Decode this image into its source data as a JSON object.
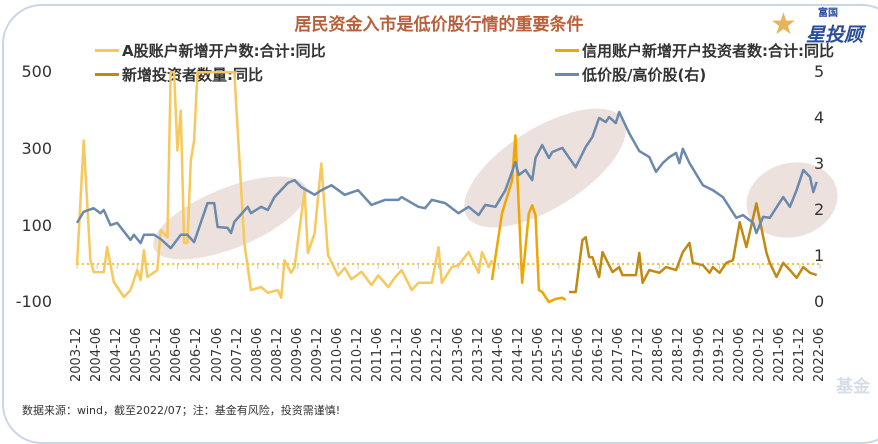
{
  "chart_data": {
    "type": "line",
    "title": "居民资金入市是低价股行情的重要条件",
    "x_unit": "months since 2003-12",
    "x_tick_labels": [
      "2003-12",
      "2004-06",
      "2004-12",
      "2005-06",
      "2005-12",
      "2006-06",
      "2006-12",
      "2007-06",
      "2007-12",
      "2008-06",
      "2008-12",
      "2009-06",
      "2009-12",
      "2010-06",
      "2010-12",
      "2011-06",
      "2011-12",
      "2012-06",
      "2012-12",
      "2013-06",
      "2013-12",
      "2014-06",
      "2014-12",
      "2015-06",
      "2015-12",
      "2016-06",
      "2016-12",
      "2017-06",
      "2017-12",
      "2018-06",
      "2018-12",
      "2019-06",
      "2019-12",
      "2020-06",
      "2020-12",
      "2021-06",
      "2021-12",
      "2022-06"
    ],
    "y_left": {
      "ticks": [
        500,
        300,
        100,
        -100
      ],
      "range": [
        -100,
        500
      ]
    },
    "y_right": {
      "ticks": [
        5,
        4,
        3,
        2,
        1,
        0
      ],
      "range": [
        0,
        5
      ]
    },
    "series": [
      {
        "name": "A股账户新增开户数:合计:同比",
        "axis": "left",
        "color": "#f7c85c",
        "points": [
          [
            0,
            -3
          ],
          [
            2,
            322
          ],
          [
            4,
            10
          ],
          [
            5,
            -21
          ],
          [
            8,
            -21
          ],
          [
            9,
            44
          ],
          [
            11,
            -47
          ],
          [
            14,
            -86
          ],
          [
            16,
            -68
          ],
          [
            18,
            -16
          ],
          [
            19,
            -42
          ],
          [
            20,
            36
          ],
          [
            21,
            -34
          ],
          [
            24,
            -16
          ],
          [
            25,
            88
          ],
          [
            27,
            70
          ],
          [
            28,
            500
          ],
          [
            29,
            500
          ],
          [
            30,
            296
          ],
          [
            31,
            400
          ],
          [
            32,
            55
          ],
          [
            33,
            55
          ],
          [
            34,
            270
          ],
          [
            35,
            322
          ],
          [
            36,
            500
          ],
          [
            47,
            500
          ],
          [
            50,
            55
          ],
          [
            52,
            -68
          ],
          [
            55,
            -60
          ],
          [
            57,
            -75
          ],
          [
            60,
            -68
          ],
          [
            61,
            -88
          ],
          [
            62,
            10
          ],
          [
            64,
            -23
          ],
          [
            65,
            -8
          ],
          [
            68,
            192
          ],
          [
            69,
            29
          ],
          [
            71,
            80
          ],
          [
            73,
            262
          ],
          [
            75,
            23
          ],
          [
            78,
            -30
          ],
          [
            80,
            -10
          ],
          [
            82,
            -40
          ],
          [
            85,
            -20
          ],
          [
            88,
            -55
          ],
          [
            90,
            -30
          ],
          [
            93,
            -60
          ],
          [
            95,
            -35
          ],
          [
            97,
            -16
          ],
          [
            100,
            -68
          ],
          [
            102,
            -49
          ],
          [
            106,
            -49
          ],
          [
            108,
            44
          ],
          [
            109,
            -49
          ],
          [
            112,
            -8
          ],
          [
            114,
            -3
          ],
          [
            117,
            31
          ],
          [
            120,
            -23
          ],
          [
            121,
            31
          ],
          [
            123,
            -8
          ],
          [
            124,
            10
          ]
        ]
      },
      {
        "name": "信用账户新增开户投资者数:合计:同比",
        "axis": "left",
        "color": "#f0a500",
        "points": [
          [
            124,
            -42
          ],
          [
            125,
            18
          ],
          [
            127,
            132
          ],
          [
            130,
            218
          ],
          [
            131,
            335
          ],
          [
            132,
            148
          ],
          [
            133,
            -49
          ],
          [
            135,
            132
          ],
          [
            136,
            153
          ],
          [
            137,
            127
          ],
          [
            138,
            -68
          ],
          [
            139,
            -73
          ],
          [
            141,
            -99
          ],
          [
            143,
            -91
          ],
          [
            145,
            -88
          ],
          [
            146,
            -94
          ]
        ]
      },
      {
        "name": "新增投资者数量:同比",
        "axis": "left",
        "color": "#c08a12",
        "points": [
          [
            147,
            -73
          ],
          [
            149,
            -73
          ],
          [
            151,
            62
          ],
          [
            152,
            70
          ],
          [
            153,
            18
          ],
          [
            154,
            18
          ],
          [
            156,
            -34
          ],
          [
            157,
            31
          ],
          [
            160,
            -21
          ],
          [
            162,
            -8
          ],
          [
            163,
            -29
          ],
          [
            167,
            -29
          ],
          [
            168,
            29
          ],
          [
            169,
            -49
          ],
          [
            171,
            -16
          ],
          [
            174,
            -23
          ],
          [
            176,
            -8
          ],
          [
            179,
            -16
          ],
          [
            181,
            31
          ],
          [
            183,
            55
          ],
          [
            184,
            3
          ],
          [
            187,
            -3
          ],
          [
            189,
            -23
          ],
          [
            190,
            -8
          ],
          [
            192,
            -23
          ],
          [
            194,
            3
          ],
          [
            196,
            10
          ],
          [
            198,
            109
          ],
          [
            200,
            44
          ],
          [
            203,
            158
          ],
          [
            206,
            29
          ],
          [
            207,
            3
          ],
          [
            209,
            -34
          ],
          [
            211,
            3
          ],
          [
            213,
            -16
          ],
          [
            215,
            -36
          ],
          [
            217,
            -8
          ],
          [
            219,
            -23
          ],
          [
            221,
            -29
          ]
        ]
      },
      {
        "name": "低价股/高价股(右)",
        "axis": "right",
        "color": "#6b89ad",
        "points": [
          [
            0,
            1.72
          ],
          [
            2,
            1.96
          ],
          [
            5,
            2.04
          ],
          [
            7,
            1.93
          ],
          [
            8,
            2.0
          ],
          [
            10,
            1.67
          ],
          [
            12,
            1.72
          ],
          [
            16,
            1.35
          ],
          [
            17,
            1.46
          ],
          [
            19,
            1.28
          ],
          [
            20,
            1.46
          ],
          [
            23,
            1.46
          ],
          [
            25,
            1.37
          ],
          [
            28,
            1.17
          ],
          [
            31,
            1.46
          ],
          [
            33,
            1.46
          ],
          [
            35,
            1.3
          ],
          [
            39,
            2.15
          ],
          [
            41,
            2.15
          ],
          [
            42,
            1.63
          ],
          [
            45,
            1.61
          ],
          [
            46,
            1.5
          ],
          [
            47,
            1.74
          ],
          [
            51,
            2.07
          ],
          [
            52,
            1.93
          ],
          [
            55,
            2.07
          ],
          [
            57,
            2.0
          ],
          [
            59,
            2.28
          ],
          [
            63,
            2.59
          ],
          [
            65,
            2.65
          ],
          [
            67,
            2.5
          ],
          [
            71,
            2.33
          ],
          [
            73,
            2.43
          ],
          [
            76,
            2.54
          ],
          [
            80,
            2.33
          ],
          [
            84,
            2.43
          ],
          [
            88,
            2.11
          ],
          [
            92,
            2.22
          ],
          [
            96,
            2.22
          ],
          [
            97,
            2.28
          ],
          [
            102,
            2.07
          ],
          [
            104,
            2.04
          ],
          [
            106,
            2.22
          ],
          [
            110,
            2.15
          ],
          [
            114,
            1.93
          ],
          [
            117,
            2.07
          ],
          [
            120,
            1.89
          ],
          [
            122,
            2.11
          ],
          [
            125,
            2.07
          ],
          [
            128,
            2.43
          ],
          [
            131,
            3.04
          ],
          [
            132,
            2.76
          ],
          [
            134,
            2.87
          ],
          [
            136,
            2.65
          ],
          [
            137,
            3.13
          ],
          [
            139,
            3.41
          ],
          [
            141,
            3.13
          ],
          [
            142,
            3.26
          ],
          [
            145,
            3.35
          ],
          [
            149,
            2.93
          ],
          [
            152,
            3.37
          ],
          [
            154,
            3.59
          ],
          [
            156,
            4.0
          ],
          [
            158,
            3.91
          ],
          [
            159,
            4.02
          ],
          [
            161,
            3.89
          ],
          [
            162,
            4.13
          ],
          [
            165,
            3.67
          ],
          [
            168,
            3.28
          ],
          [
            171,
            3.15
          ],
          [
            173,
            2.83
          ],
          [
            175,
            3.02
          ],
          [
            177,
            3.15
          ],
          [
            179,
            3.24
          ],
          [
            180,
            3.02
          ],
          [
            181,
            3.33
          ],
          [
            183,
            3.02
          ],
          [
            187,
            2.54
          ],
          [
            190,
            2.43
          ],
          [
            193,
            2.28
          ],
          [
            197,
            1.83
          ],
          [
            199,
            1.89
          ],
          [
            202,
            1.72
          ],
          [
            203,
            1.5
          ],
          [
            205,
            1.85
          ],
          [
            207,
            1.83
          ],
          [
            211,
            2.28
          ],
          [
            213,
            2.07
          ],
          [
            215,
            2.43
          ],
          [
            217,
            2.87
          ],
          [
            219,
            2.72
          ],
          [
            220,
            2.39
          ],
          [
            221,
            2.61
          ]
        ]
      }
    ],
    "legend": "top",
    "grid": false
  },
  "logo": {
    "top": "富国",
    "main": "星投顾",
    "star": "★"
  },
  "watermark": "基金",
  "footer": "数据来源：wind，截至2022/07；注：基金有风险，投资需谨慎!"
}
